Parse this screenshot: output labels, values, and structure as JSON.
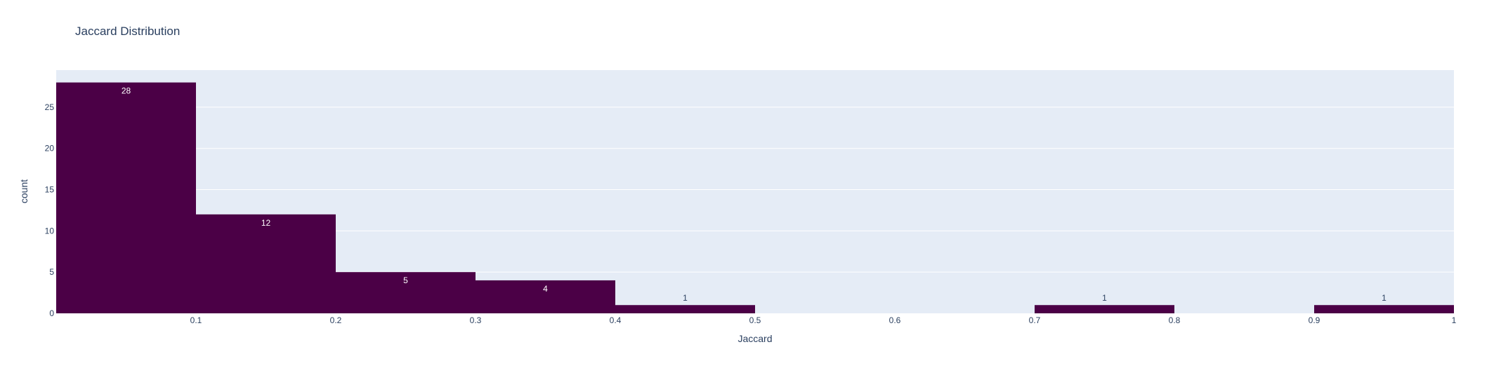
{
  "chart_data": {
    "type": "bar",
    "title": "Jaccard Distribution",
    "xlabel": "Jaccard",
    "ylabel": "count",
    "xlim": [
      0,
      1
    ],
    "ylim": [
      0,
      29.5
    ],
    "x_ticks": [
      "0.1",
      "0.2",
      "0.3",
      "0.4",
      "0.5",
      "0.6",
      "0.7",
      "0.8",
      "0.9",
      "1"
    ],
    "y_ticks": [
      "0",
      "5",
      "10",
      "15",
      "20",
      "25"
    ],
    "bins": [
      {
        "start": 0.0,
        "end": 0.1,
        "count": 28
      },
      {
        "start": 0.1,
        "end": 0.2,
        "count": 12
      },
      {
        "start": 0.2,
        "end": 0.3,
        "count": 5
      },
      {
        "start": 0.3,
        "end": 0.4,
        "count": 4
      },
      {
        "start": 0.4,
        "end": 0.5,
        "count": 1
      },
      {
        "start": 0.7,
        "end": 0.8,
        "count": 1
      },
      {
        "start": 0.9,
        "end": 1.0,
        "count": 1
      }
    ],
    "bar_color": "#4b0046",
    "plot_bg": "#e5ecf6",
    "grid": true
  }
}
